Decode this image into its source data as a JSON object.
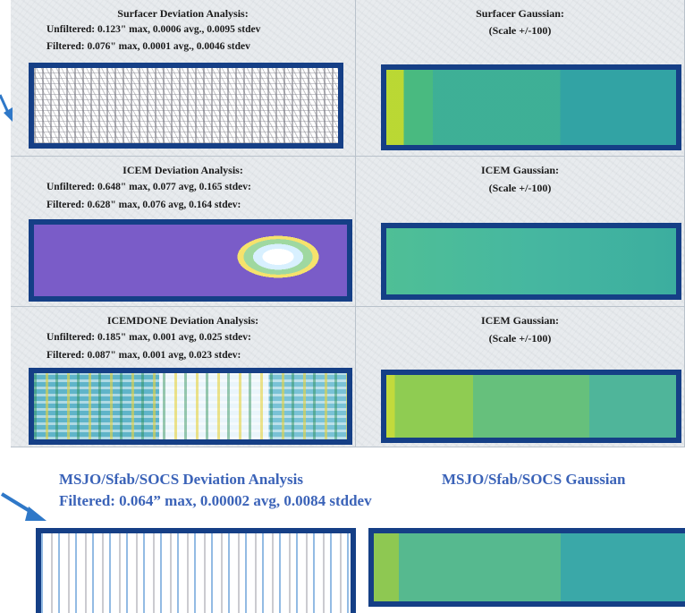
{
  "panels": {
    "surfacer_dev": {
      "title": "Surfacer Deviation Analysis:",
      "unfiltered": "Unfiltered:  0.123\" max, 0.0006 avg., 0.0095 stdev",
      "filtered": "Filtered:      0.076\" max, 0.0001 avg., 0.0046 stdev"
    },
    "surfacer_gauss": {
      "title": "Surfacer Gaussian:",
      "scale": "(Scale +/-100)"
    },
    "icem_dev": {
      "title": "ICEM Deviation Analysis:",
      "unfiltered": "Unfiltered:  0.648\" max, 0.077 avg, 0.165 stdev:",
      "filtered": "Filtered:      0.628\" max, 0.076 avg, 0.164 stdev:"
    },
    "icem_gauss": {
      "title": "ICEM Gaussian:",
      "scale": "(Scale +/-100)"
    },
    "icemdone_dev": {
      "title": "ICEMDONE Deviation Analysis:",
      "unfiltered": "Unfiltered:  0.185\" max, 0.001 avg, 0.025 stdev:",
      "filtered": "Filtered:      0.087\" max, 0.001 avg, 0.023 stdev:"
    },
    "icemdone_gauss": {
      "title": "ICEM Gaussian:",
      "scale": "(Scale +/-100)"
    }
  },
  "bottom": {
    "dev_title": "MSJO/Sfab/SOCS Deviation Analysis",
    "dev_stats": "Filtered: 0.064” max, 0.00002 avg, 0.0084 stddev",
    "gauss_title": "MSJO/Sfab/SOCS Gaussian"
  },
  "colors": {
    "frame_blue": "#153f86",
    "bottom_text": "#3b63b8",
    "arrow": "#2f78c8"
  }
}
